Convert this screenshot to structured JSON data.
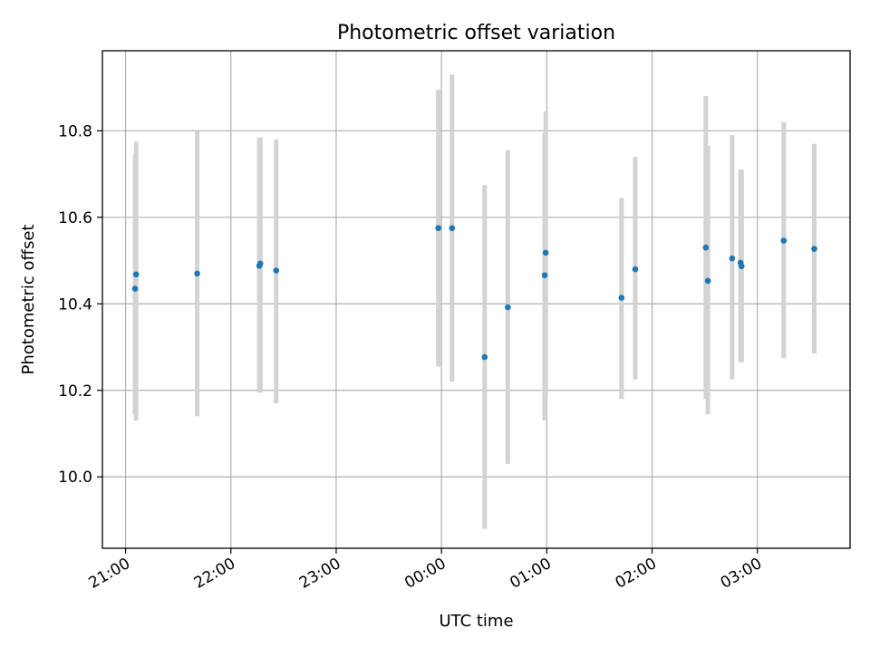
{
  "chart_data": {
    "type": "scatter",
    "title": "Photometric offset variation",
    "xlabel": "UTC time",
    "ylabel": "Photometric offset",
    "x_unit": "hours (UTC), continuing past midnight",
    "xlim": [
      20.78,
      27.88
    ],
    "ylim": [
      9.835,
      10.985
    ],
    "grid": true,
    "x_ticks": [
      {
        "value": 21,
        "label": "21:00"
      },
      {
        "value": 22,
        "label": "22:00"
      },
      {
        "value": 23,
        "label": "23:00"
      },
      {
        "value": 24,
        "label": "00:00"
      },
      {
        "value": 25,
        "label": "01:00"
      },
      {
        "value": 26,
        "label": "02:00"
      },
      {
        "value": 27,
        "label": "03:00"
      }
    ],
    "y_ticks": [
      {
        "value": 10.0,
        "label": "10.0"
      },
      {
        "value": 10.2,
        "label": "10.2"
      },
      {
        "value": 10.4,
        "label": "10.4"
      },
      {
        "value": 10.6,
        "label": "10.6"
      },
      {
        "value": 10.8,
        "label": "10.8"
      }
    ],
    "colors": {
      "point": "#1f77b4",
      "errorbar": "#d3d3d3",
      "grid": "#b0b0b0"
    },
    "series": [
      {
        "marker": "dot",
        "points": [
          {
            "x": 21.09,
            "y": 10.435,
            "err_low": 10.145,
            "err_high": 10.745
          },
          {
            "x": 21.1,
            "y": 10.468,
            "err_low": 10.13,
            "err_high": 10.775
          },
          {
            "x": 21.68,
            "y": 10.47,
            "err_low": 10.14,
            "err_high": 10.8
          },
          {
            "x": 22.27,
            "y": 10.488,
            "err_low": 10.195,
            "err_high": 10.785
          },
          {
            "x": 22.28,
            "y": 10.493,
            "err_low": 10.195,
            "err_high": 10.785
          },
          {
            "x": 22.43,
            "y": 10.477,
            "err_low": 10.17,
            "err_high": 10.78
          },
          {
            "x": 23.97,
            "y": 10.575,
            "err_low": 10.255,
            "err_high": 10.895
          },
          {
            "x": 24.1,
            "y": 10.575,
            "err_low": 10.22,
            "err_high": 10.93
          },
          {
            "x": 24.41,
            "y": 10.277,
            "err_low": 9.88,
            "err_high": 10.675
          },
          {
            "x": 24.63,
            "y": 10.392,
            "err_low": 10.03,
            "err_high": 10.755
          },
          {
            "x": 24.98,
            "y": 10.466,
            "err_low": 10.13,
            "err_high": 10.795
          },
          {
            "x": 24.99,
            "y": 10.518,
            "err_low": 10.185,
            "err_high": 10.845
          },
          {
            "x": 25.71,
            "y": 10.414,
            "err_low": 10.18,
            "err_high": 10.645
          },
          {
            "x": 25.84,
            "y": 10.48,
            "err_low": 10.225,
            "err_high": 10.74
          },
          {
            "x": 26.51,
            "y": 10.53,
            "err_low": 10.18,
            "err_high": 10.88
          },
          {
            "x": 26.53,
            "y": 10.453,
            "err_low": 10.145,
            "err_high": 10.765
          },
          {
            "x": 26.76,
            "y": 10.505,
            "err_low": 10.225,
            "err_high": 10.79
          },
          {
            "x": 26.84,
            "y": 10.495,
            "err_low": 10.265,
            "err_high": 10.71
          },
          {
            "x": 26.85,
            "y": 10.487,
            "err_low": 10.265,
            "err_high": 10.71
          },
          {
            "x": 27.25,
            "y": 10.546,
            "err_low": 10.275,
            "err_high": 10.82
          },
          {
            "x": 27.54,
            "y": 10.527,
            "err_low": 10.285,
            "err_high": 10.77
          }
        ]
      }
    ]
  }
}
